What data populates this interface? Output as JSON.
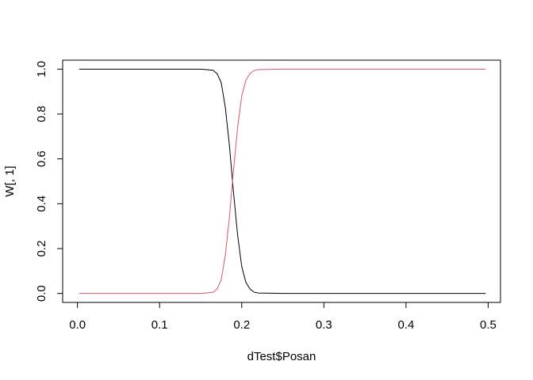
{
  "chart_data": {
    "type": "line",
    "title": "",
    "xlabel": "dTest$Posan",
    "ylabel": "W[, 1]",
    "xlim": [
      -0.018,
      0.515
    ],
    "ylim": [
      -0.04,
      1.04
    ],
    "xticks": [
      0.0,
      0.1,
      0.2,
      0.3,
      0.4,
      0.5
    ],
    "xtick_labels": [
      "0.0",
      "0.1",
      "0.2",
      "0.3",
      "0.4",
      "0.5"
    ],
    "yticks": [
      0.0,
      0.2,
      0.4,
      0.6,
      0.8,
      1.0
    ],
    "ytick_labels": [
      "0.0",
      "0.2",
      "0.4",
      "0.6",
      "0.8",
      "1.0"
    ],
    "grid": false,
    "legend": "none",
    "x": [
      0.002,
      0.05,
      0.1,
      0.15,
      0.165,
      0.17,
      0.175,
      0.18,
      0.185,
      0.19,
      0.195,
      0.2,
      0.205,
      0.21,
      0.215,
      0.22,
      0.25,
      0.3,
      0.35,
      0.4,
      0.45,
      0.497
    ],
    "series": [
      {
        "color": "#000000",
        "values": [
          1.0,
          1.0,
          1.0,
          1.0,
          0.995,
          0.98,
          0.94,
          0.83,
          0.66,
          0.45,
          0.26,
          0.12,
          0.05,
          0.02,
          0.006,
          0.002,
          0.0,
          0.0,
          0.0,
          0.0,
          0.0,
          0.0
        ]
      },
      {
        "color": "#DF536B",
        "values": [
          0.0,
          0.0,
          0.0,
          0.0,
          0.005,
          0.02,
          0.06,
          0.17,
          0.34,
          0.55,
          0.74,
          0.88,
          0.95,
          0.98,
          0.994,
          0.998,
          1.0,
          1.0,
          1.0,
          1.0,
          1.0,
          1.0
        ]
      }
    ]
  }
}
